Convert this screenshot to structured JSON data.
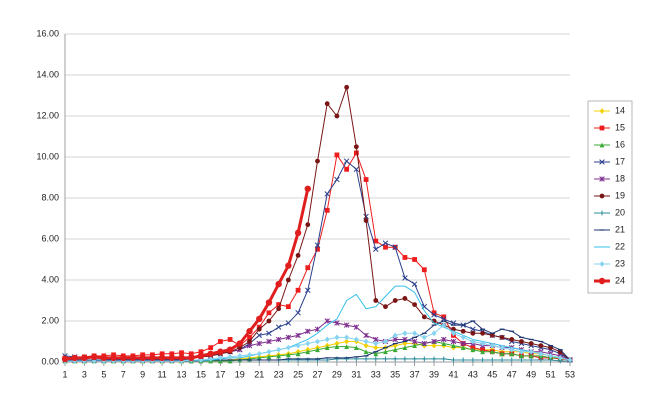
{
  "chart_data": {
    "type": "line",
    "x": [
      1,
      2,
      3,
      4,
      5,
      6,
      7,
      8,
      9,
      10,
      11,
      12,
      13,
      14,
      15,
      16,
      17,
      18,
      19,
      20,
      21,
      22,
      23,
      24,
      25,
      26,
      27,
      28,
      29,
      30,
      31,
      32,
      33,
      34,
      35,
      36,
      37,
      38,
      39,
      40,
      41,
      42,
      43,
      44,
      45,
      46,
      47,
      48,
      49,
      50,
      51,
      52,
      53
    ],
    "xlim": [
      1,
      53
    ],
    "xticks": [
      1,
      3,
      5,
      7,
      9,
      11,
      13,
      15,
      17,
      19,
      21,
      23,
      25,
      27,
      29,
      31,
      33,
      35,
      37,
      39,
      41,
      43,
      45,
      47,
      49,
      51,
      53
    ],
    "ylim": [
      0,
      16
    ],
    "yticks": [
      {
        "value": 0,
        "label": "0.00"
      },
      {
        "value": 2,
        "label": "2.00"
      },
      {
        "value": 4,
        "label": "4.00"
      },
      {
        "value": 6,
        "label": "6.00"
      },
      {
        "value": 8,
        "label": "8.00"
      },
      {
        "value": 10,
        "label": "10.00"
      },
      {
        "value": 12,
        "label": "12.00"
      },
      {
        "value": 14,
        "label": "14.00"
      },
      {
        "value": 16,
        "label": "16.00"
      }
    ],
    "grid": true,
    "legend": "right",
    "series": [
      {
        "name": "14",
        "color": "#f5d000",
        "marker": "diamond",
        "width": 1,
        "values": [
          0.1,
          0.1,
          0.1,
          0.1,
          0.1,
          0.1,
          0.1,
          0.1,
          0.1,
          0.1,
          0.1,
          0.1,
          0.1,
          0.1,
          0.1,
          0.1,
          0.1,
          0.1,
          0.15,
          0.2,
          0.25,
          0.3,
          0.35,
          0.4,
          0.5,
          0.6,
          0.7,
          0.8,
          0.9,
          1.0,
          1.0,
          0.8,
          0.7,
          0.7,
          0.8,
          0.9,
          0.9,
          0.8,
          0.8,
          0.8,
          0.7,
          0.7,
          0.6,
          0.6,
          0.6,
          0.5,
          0.5,
          0.5,
          0.4,
          0.4,
          0.3,
          0.2,
          0.1
        ]
      },
      {
        "name": "15",
        "color": "#ee1c1c",
        "marker": "square",
        "width": 1,
        "values": [
          0.2,
          0.2,
          0.25,
          0.3,
          0.3,
          0.35,
          0.3,
          0.3,
          0.35,
          0.35,
          0.4,
          0.4,
          0.45,
          0.4,
          0.5,
          0.7,
          1.0,
          1.1,
          0.8,
          1.2,
          1.7,
          2.4,
          2.8,
          2.7,
          3.5,
          4.6,
          5.5,
          7.4,
          10.1,
          9.4,
          10.2,
          8.9,
          5.9,
          5.6,
          5.6,
          5.1,
          5.0,
          4.5,
          2.4,
          2.2,
          1.3,
          0.9,
          0.7,
          0.6,
          0.5,
          0.4,
          0.4,
          0.3,
          0.3,
          0.2,
          0.2,
          0.15,
          0.1
        ]
      },
      {
        "name": "16",
        "color": "#3aaa35",
        "marker": "triangle",
        "width": 1,
        "values": [
          0.05,
          0.05,
          0.05,
          0.05,
          0.05,
          0.05,
          0.05,
          0.05,
          0.05,
          0.05,
          0.05,
          0.05,
          0.05,
          0.05,
          0.05,
          0.05,
          0.05,
          0.05,
          0.1,
          0.15,
          0.2,
          0.25,
          0.3,
          0.35,
          0.4,
          0.5,
          0.6,
          0.7,
          0.75,
          0.75,
          0.7,
          0.5,
          0.4,
          0.5,
          0.6,
          0.7,
          0.8,
          0.9,
          1.0,
          0.9,
          0.8,
          0.7,
          0.6,
          0.5,
          0.5,
          0.4,
          0.4,
          0.3,
          0.3,
          0.3,
          0.2,
          0.2,
          0.1
        ]
      },
      {
        "name": "17",
        "color": "#2b3f8c",
        "marker": "x",
        "width": 1,
        "values": [
          0.3,
          0.25,
          0.2,
          0.2,
          0.15,
          0.15,
          0.15,
          0.15,
          0.15,
          0.15,
          0.15,
          0.15,
          0.2,
          0.2,
          0.25,
          0.3,
          0.4,
          0.5,
          0.6,
          0.9,
          1.3,
          1.4,
          1.7,
          1.9,
          2.4,
          3.5,
          5.7,
          8.2,
          8.9,
          9.8,
          9.4,
          7.1,
          5.5,
          5.8,
          5.6,
          4.1,
          3.8,
          2.7,
          2.3,
          2.1,
          1.9,
          1.8,
          1.6,
          1.5,
          1.3,
          1.2,
          1.0,
          0.9,
          0.8,
          0.7,
          0.6,
          0.4,
          0.1
        ]
      },
      {
        "name": "18",
        "color": "#7e2f8e",
        "marker": "star",
        "width": 1,
        "values": [
          0.1,
          0.1,
          0.1,
          0.1,
          0.1,
          0.1,
          0.1,
          0.1,
          0.1,
          0.1,
          0.1,
          0.1,
          0.15,
          0.2,
          0.25,
          0.3,
          0.4,
          0.5,
          0.6,
          0.8,
          0.9,
          1.0,
          1.1,
          1.2,
          1.3,
          1.5,
          1.6,
          2.0,
          1.9,
          1.8,
          1.7,
          1.3,
          1.1,
          1.0,
          1.1,
          1.1,
          1.0,
          0.9,
          1.0,
          1.1,
          1.0,
          0.9,
          0.9,
          0.8,
          0.8,
          0.7,
          0.7,
          0.6,
          0.5,
          0.5,
          0.4,
          0.3,
          0.1
        ]
      },
      {
        "name": "19",
        "color": "#7a1616",
        "marker": "circle",
        "width": 1,
        "values": [
          0.15,
          0.15,
          0.2,
          0.2,
          0.2,
          0.2,
          0.2,
          0.2,
          0.2,
          0.2,
          0.2,
          0.2,
          0.2,
          0.2,
          0.25,
          0.3,
          0.4,
          0.5,
          0.7,
          1.0,
          1.6,
          2.0,
          2.6,
          4.0,
          5.2,
          6.7,
          9.8,
          12.6,
          12.0,
          13.4,
          10.5,
          6.9,
          3.0,
          2.7,
          3.0,
          3.1,
          2.8,
          2.2,
          2.0,
          1.8,
          1.6,
          1.5,
          1.4,
          1.4,
          1.3,
          1.2,
          1.1,
          1.0,
          0.9,
          0.8,
          0.7,
          0.5,
          0.1
        ]
      },
      {
        "name": "20",
        "color": "#2a8c9c",
        "marker": "plus",
        "width": 1,
        "values": [
          0.05,
          0.05,
          0.05,
          0.05,
          0.05,
          0.05,
          0.05,
          0.05,
          0.05,
          0.05,
          0.05,
          0.05,
          0.05,
          0.05,
          0.05,
          0.1,
          0.1,
          0.1,
          0.1,
          0.1,
          0.1,
          0.1,
          0.1,
          0.1,
          0.1,
          0.1,
          0.1,
          0.1,
          0.15,
          0.15,
          0.15,
          0.15,
          0.15,
          0.15,
          0.15,
          0.15,
          0.15,
          0.15,
          0.15,
          0.15,
          0.1,
          0.1,
          0.1,
          0.1,
          0.1,
          0.1,
          0.1,
          0.1,
          0.1,
          0.1,
          0.1,
          0.05,
          0.05
        ]
      },
      {
        "name": "21",
        "color": "#1f3470",
        "marker": "dash",
        "width": 1,
        "values": [
          0.1,
          0.1,
          0.1,
          0.1,
          0.1,
          0.1,
          0.1,
          0.1,
          0.1,
          0.1,
          0.1,
          0.1,
          0.1,
          0.1,
          0.1,
          0.1,
          0.1,
          0.1,
          0.1,
          0.1,
          0.1,
          0.1,
          0.1,
          0.15,
          0.15,
          0.15,
          0.15,
          0.2,
          0.2,
          0.2,
          0.25,
          0.3,
          0.5,
          0.7,
          0.9,
          1.0,
          1.2,
          1.4,
          1.8,
          2.0,
          1.8,
          1.8,
          2.0,
          1.6,
          1.4,
          1.6,
          1.5,
          1.2,
          1.1,
          1.0,
          0.8,
          0.6,
          0.1
        ]
      },
      {
        "name": "22",
        "color": "#36c0e8",
        "marker": "none",
        "width": 1,
        "values": [
          0.05,
          0.05,
          0.05,
          0.05,
          0.05,
          0.05,
          0.05,
          0.05,
          0.05,
          0.05,
          0.05,
          0.05,
          0.05,
          0.1,
          0.1,
          0.1,
          0.15,
          0.2,
          0.2,
          0.3,
          0.4,
          0.5,
          0.6,
          0.7,
          0.9,
          1.1,
          1.4,
          1.8,
          2.1,
          3.0,
          3.3,
          2.6,
          2.7,
          3.2,
          3.7,
          3.7,
          3.4,
          2.5,
          1.9,
          1.7,
          1.5,
          1.3,
          1.1,
          1.0,
          0.9,
          0.8,
          0.7,
          0.6,
          0.5,
          0.4,
          0.3,
          0.2,
          0.1
        ]
      },
      {
        "name": "23",
        "color": "#86d3f0",
        "marker": "diamond",
        "width": 1,
        "values": [
          0.05,
          0.05,
          0.05,
          0.05,
          0.05,
          0.05,
          0.05,
          0.05,
          0.05,
          0.05,
          0.05,
          0.05,
          0.05,
          0.1,
          0.1,
          0.15,
          0.2,
          0.25,
          0.3,
          0.35,
          0.4,
          0.5,
          0.6,
          0.7,
          0.8,
          0.9,
          1.0,
          1.1,
          1.2,
          1.2,
          1.1,
          1.0,
          0.9,
          1.0,
          1.3,
          1.4,
          1.4,
          1.2,
          1.4,
          1.8,
          1.4,
          1.2,
          1.0,
          0.9,
          0.8,
          0.7,
          0.6,
          0.5,
          0.5,
          0.4,
          0.3,
          0.2,
          0.1
        ]
      },
      {
        "name": "24",
        "color": "#e01e1e",
        "marker": "circle",
        "width": 3,
        "values": [
          0.15,
          0.2,
          0.2,
          0.25,
          0.2,
          0.2,
          0.2,
          0.2,
          0.2,
          0.2,
          0.2,
          0.2,
          0.2,
          0.2,
          0.3,
          0.4,
          0.5,
          0.6,
          0.9,
          1.5,
          2.1,
          2.9,
          3.8,
          4.7,
          6.3,
          8.45,
          null,
          null,
          null,
          null,
          null,
          null,
          null,
          null,
          null,
          null,
          null,
          null,
          null,
          null,
          null,
          null,
          null,
          null,
          null,
          null,
          null,
          null,
          null,
          null,
          null,
          null,
          null
        ]
      }
    ]
  }
}
